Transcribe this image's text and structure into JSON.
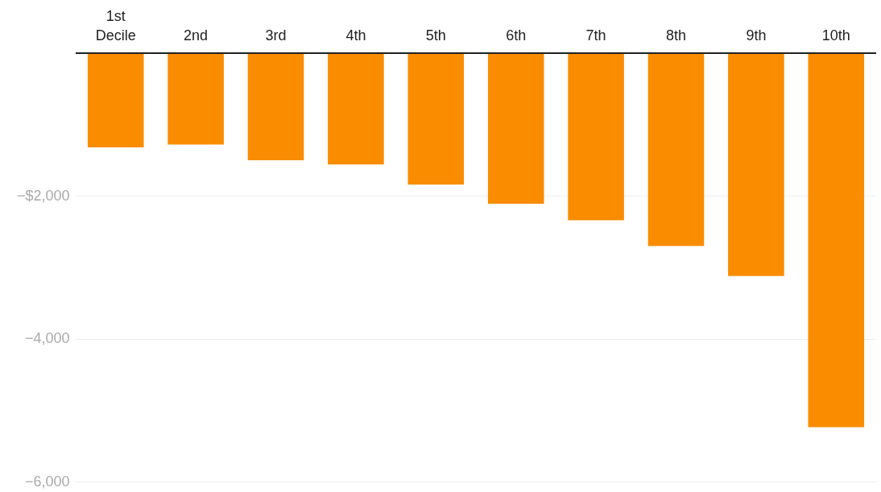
{
  "chart_data": {
    "type": "bar",
    "categories": [
      "1st Decile",
      "2nd",
      "3rd",
      "4th",
      "5th",
      "6th",
      "7th",
      "8th",
      "9th",
      "10th"
    ],
    "values": [
      -1320,
      -1280,
      -1500,
      -1560,
      -1840,
      -2110,
      -2340,
      -2700,
      -3120,
      -5240
    ],
    "color": "#fa8c00",
    "ylim": [
      -6000,
      0
    ],
    "yticks": [
      {
        "value": -6000,
        "label": "−6,000"
      },
      {
        "value": -4000,
        "label": "−4,000"
      },
      {
        "value": -2000,
        "label": "−$2,000"
      }
    ],
    "grid": "y"
  }
}
